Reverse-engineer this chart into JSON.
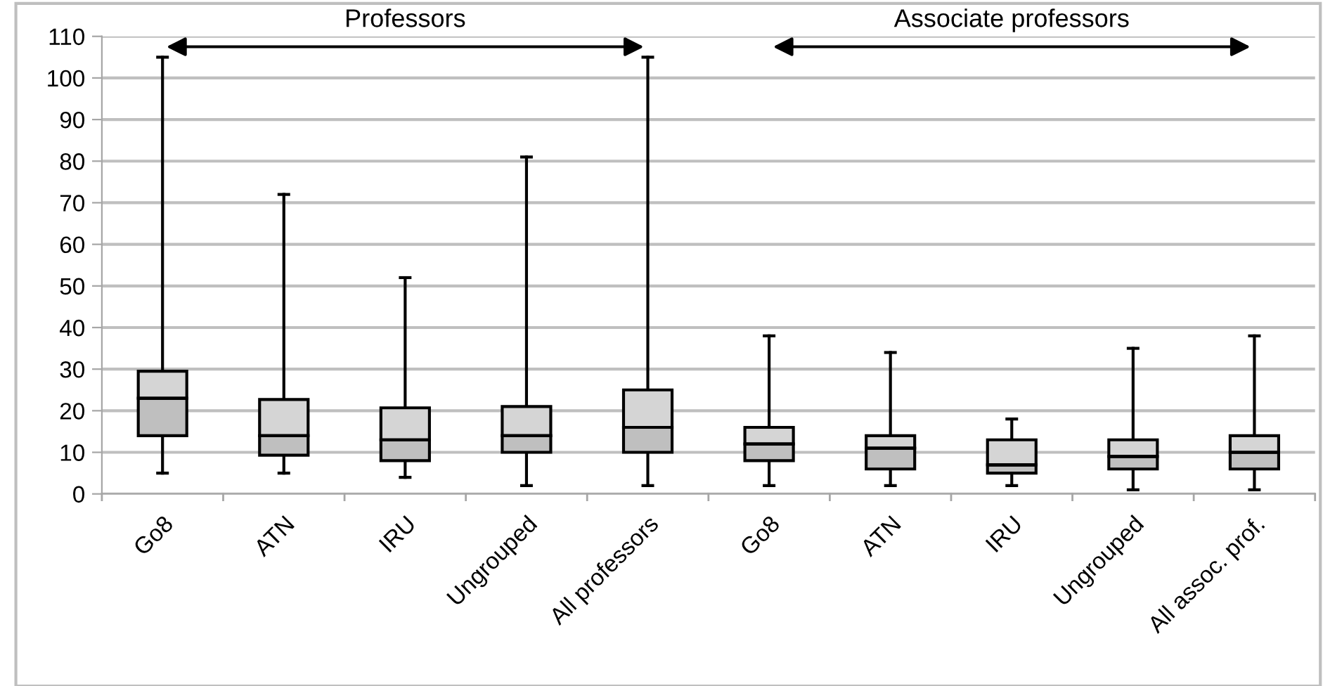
{
  "chart_data": {
    "type": "box",
    "categories": [
      "Go8",
      "ATN",
      "IRU",
      "Ungrouped",
      "All professors",
      "Go8",
      "ATN",
      "IRU",
      "Ungrouped",
      "All assoc. prof."
    ],
    "boxes": [
      {
        "low": 5,
        "q1": 14,
        "median": 23,
        "q3": 29.5,
        "high": 105
      },
      {
        "low": 5,
        "q1": 9.3,
        "median": 14,
        "q3": 22.7,
        "high": 72
      },
      {
        "low": 4,
        "q1": 8,
        "median": 13,
        "q3": 20.7,
        "high": 52
      },
      {
        "low": 2,
        "q1": 10,
        "median": 14,
        "q3": 21,
        "high": 81
      },
      {
        "low": 2,
        "q1": 10,
        "median": 16,
        "q3": 25,
        "high": 105
      },
      {
        "low": 2,
        "q1": 8,
        "median": 12,
        "q3": 16,
        "high": 38
      },
      {
        "low": 2,
        "q1": 6,
        "median": 11,
        "q3": 14,
        "high": 34
      },
      {
        "low": 2,
        "q1": 5,
        "median": 7,
        "q3": 13,
        "high": 18
      },
      {
        "low": 1,
        "q1": 6,
        "median": 9,
        "q3": 13,
        "high": 35
      },
      {
        "low": 1,
        "q1": 6,
        "median": 10,
        "q3": 14,
        "high": 38
      }
    ],
    "colors": [
      "#bfbfbf",
      "#bfbfbf",
      "#bfbfbf",
      "#bfbfbf",
      "#bfbfbf",
      "#bfbfbf",
      "#bfbfbf",
      "#bfbfbf",
      "#bfbfbf",
      "#bfbfbf"
    ],
    "annotations": [
      "Professors",
      "Associate professors"
    ],
    "ylim": [
      0,
      110
    ],
    "yticks": [
      0,
      10,
      20,
      30,
      40,
      50,
      60,
      70,
      80,
      90,
      100,
      110
    ],
    "grid": "y",
    "legend": false
  }
}
